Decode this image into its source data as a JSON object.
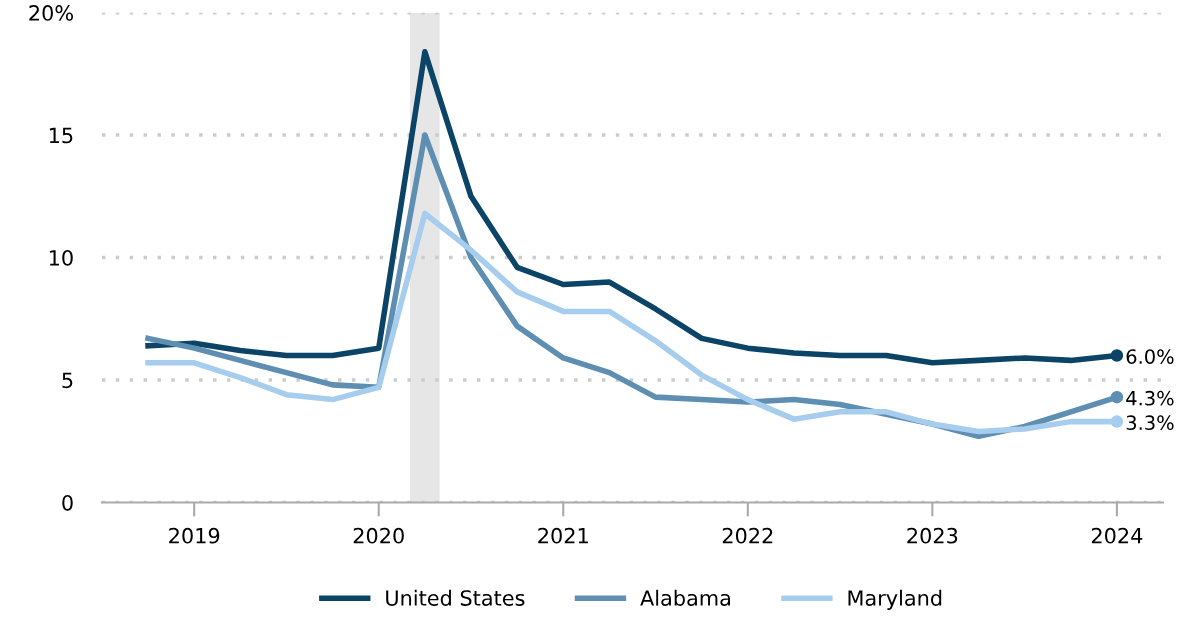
{
  "chart_data": {
    "type": "line",
    "x": [
      2018.75,
      2019.0,
      2019.25,
      2019.5,
      2019.75,
      2020.0,
      2020.25,
      2020.5,
      2020.75,
      2021.0,
      2021.25,
      2021.5,
      2021.75,
      2022.0,
      2022.25,
      2022.5,
      2022.75,
      2023.0,
      2023.25,
      2023.5,
      2023.75,
      2024.0
    ],
    "series": [
      {
        "name": "United States",
        "color": "#0b4466",
        "values": [
          6.4,
          6.5,
          6.2,
          6.0,
          6.0,
          6.3,
          18.4,
          12.5,
          9.6,
          8.9,
          9.0,
          7.9,
          6.7,
          6.3,
          6.1,
          6.0,
          6.0,
          5.7,
          5.8,
          5.9,
          5.8,
          6.0
        ],
        "value_labels": [
          null,
          null,
          null,
          null,
          null,
          null,
          null,
          null,
          null,
          null,
          null,
          null,
          null,
          null,
          null,
          null,
          null,
          null,
          null,
          null,
          null,
          "6.0%"
        ]
      },
      {
        "name": "Alabama",
        "color": "#5e8fb3",
        "values": [
          6.7,
          6.3,
          5.8,
          5.3,
          4.8,
          4.7,
          15.0,
          10.0,
          7.2,
          5.9,
          5.3,
          4.3,
          4.2,
          4.1,
          4.2,
          4.0,
          3.6,
          3.2,
          2.7,
          3.1,
          3.7,
          4.3
        ],
        "value_labels": [
          null,
          null,
          null,
          null,
          null,
          null,
          null,
          null,
          null,
          null,
          null,
          null,
          null,
          null,
          null,
          null,
          null,
          null,
          null,
          null,
          null,
          "4.3%"
        ]
      },
      {
        "name": "Maryland",
        "color": "#a6cdee",
        "values": [
          5.7,
          5.7,
          5.1,
          4.4,
          4.2,
          4.7,
          11.8,
          10.3,
          8.6,
          7.8,
          7.8,
          6.6,
          5.2,
          4.2,
          3.4,
          3.7,
          3.7,
          3.2,
          2.9,
          3.0,
          3.3,
          3.3
        ],
        "value_labels": [
          null,
          null,
          null,
          null,
          null,
          null,
          null,
          null,
          null,
          null,
          null,
          null,
          null,
          null,
          null,
          null,
          null,
          null,
          null,
          null,
          null,
          "3.3%"
        ]
      }
    ],
    "xlim": [
      2018.5,
      2024.25
    ],
    "xticks": [
      2019,
      2020,
      2021,
      2022,
      2023,
      2024
    ],
    "ylim": [
      0,
      20
    ],
    "yticks": [
      0,
      5,
      10,
      15,
      {
        "value": 20,
        "label": "20%"
      }
    ],
    "bands": [
      {
        "axis": "x",
        "from": 2020.17,
        "to": 2020.33,
        "color": "#e6e6e6"
      }
    ],
    "grid": "y",
    "legend": "bottom",
    "line_style": "solid"
  }
}
